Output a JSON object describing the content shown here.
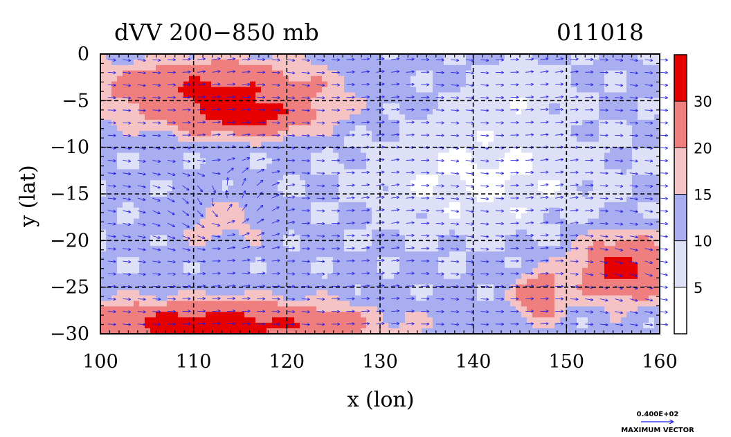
{
  "chart_data": {
    "type": "heatmap",
    "title": "dVV 200−850 mb",
    "date_label": "011018",
    "xlabel": "x (lon)",
    "ylabel": "y (lat)",
    "xlim": [
      100,
      160
    ],
    "ylim": [
      -30,
      0
    ],
    "x_ticks": [
      100,
      110,
      120,
      130,
      140,
      150,
      160
    ],
    "y_ticks": [
      0,
      -5,
      -10,
      -15,
      -20,
      -25,
      -30
    ],
    "x_tick_labels": [
      "100",
      "110",
      "120",
      "130",
      "140",
      "150",
      "160"
    ],
    "y_tick_labels": [
      "0",
      "−5",
      "−10",
      "−15",
      "−20",
      "−25",
      "−30"
    ],
    "grid": true,
    "colorbar": {
      "placement": "right",
      "levels": [
        5,
        10,
        15,
        20,
        30
      ],
      "level_labels": [
        "5",
        "10",
        "15",
        "20",
        "30"
      ],
      "colors": [
        "#ffffff",
        "#dde0f7",
        "#a9aef0",
        "#f5c3c3",
        "#ef7f7f",
        "#e60000"
      ]
    },
    "vector_legend": {
      "value_label": "0.400E+02",
      "caption": "MAXIMUM VECTOR",
      "color": "#1a1ae6"
    },
    "line_color": "#000000",
    "grid_color": "#000000"
  }
}
